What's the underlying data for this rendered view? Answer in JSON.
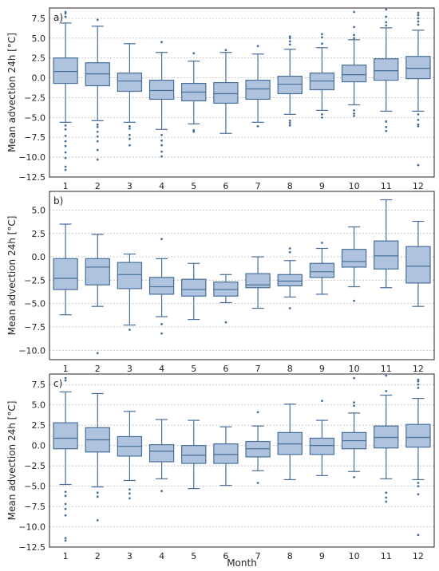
{
  "chart_data": [
    {
      "type": "box",
      "panel_label": "a)",
      "ylabel": "Mean advection 24h [°C]",
      "ylim": [
        -12.5,
        8.8
      ],
      "yticks": [
        -12.5,
        -10.0,
        -7.5,
        -5.0,
        -2.5,
        0.0,
        2.5,
        5.0,
        7.5
      ],
      "ytick_labels": [
        "−12.5",
        "−10.0",
        "−7.5",
        "−5.0",
        "−2.5",
        "0.0",
        "2.5",
        "5.0",
        "7.5"
      ],
      "grid": "y-dotted",
      "categories": [
        "1",
        "2",
        "3",
        "4",
        "5",
        "6",
        "7",
        "8",
        "9",
        "10",
        "11",
        "12"
      ],
      "boxes": [
        {
          "q1": -0.7,
          "median": 0.8,
          "q3": 2.5,
          "whisker_low": -5.6,
          "whisker_high": 6.9,
          "outliers": [
            -6.0,
            -6.5,
            -7.3,
            -8.0,
            -8.6,
            -9.4,
            -10.1,
            -11.2,
            -11.6,
            7.7,
            8.1,
            8.3
          ]
        },
        {
          "q1": -1.0,
          "median": 0.5,
          "q3": 1.9,
          "whisker_low": -5.4,
          "whisker_high": 6.5,
          "outliers": [
            -5.9,
            -6.2,
            -6.8,
            -7.4,
            -8.0,
            -9.1,
            -10.3,
            7.3
          ]
        },
        {
          "q1": -1.7,
          "median": -0.4,
          "q3": 0.6,
          "whisker_low": -5.6,
          "whisker_high": 4.3,
          "outliers": [
            -6.1,
            -6.4,
            -7.2,
            -7.7,
            -8.5
          ]
        },
        {
          "q1": -2.7,
          "median": -1.6,
          "q3": -0.3,
          "whisker_low": -6.5,
          "whisker_high": 3.2,
          "outliers": [
            -7.2,
            -7.9,
            -8.5,
            -9.3,
            -9.9,
            4.5
          ]
        },
        {
          "q1": -2.9,
          "median": -1.8,
          "q3": -0.7,
          "whisker_low": -5.8,
          "whisker_high": 2.1,
          "outliers": [
            -6.6,
            -6.8,
            3.1
          ]
        },
        {
          "q1": -3.2,
          "median": -2.0,
          "q3": -0.6,
          "whisker_low": -7.0,
          "whisker_high": 3.2,
          "outliers": [
            3.5
          ]
        },
        {
          "q1": -2.7,
          "median": -1.4,
          "q3": -0.3,
          "whisker_low": -5.6,
          "whisker_high": 3.0,
          "outliers": [
            -6.1,
            4.0
          ]
        },
        {
          "q1": -2.0,
          "median": -0.8,
          "q3": 0.2,
          "whisker_low": -4.6,
          "whisker_high": 3.6,
          "outliers": [
            -5.4,
            -5.7,
            -6.0,
            4.2,
            4.6,
            5.0,
            5.2
          ]
        },
        {
          "q1": -1.5,
          "median": -0.4,
          "q3": 0.6,
          "whisker_low": -4.1,
          "whisker_high": 3.8,
          "outliers": [
            -4.6,
            -5.0,
            4.3,
            5.1,
            5.5
          ]
        },
        {
          "q1": -0.5,
          "median": 0.4,
          "q3": 1.6,
          "whisker_low": -3.4,
          "whisker_high": 4.8,
          "outliers": [
            -4.1,
            -4.5,
            -4.8,
            5.0,
            5.4,
            6.4,
            8.3
          ]
        },
        {
          "q1": -0.3,
          "median": 0.9,
          "q3": 2.4,
          "whisker_low": -4.2,
          "whisker_high": 6.3,
          "outliers": [
            -5.5,
            -6.2,
            -6.7,
            6.6,
            7.0,
            7.7,
            8.6
          ]
        },
        {
          "q1": -0.1,
          "median": 1.2,
          "q3": 2.7,
          "whisker_low": -4.2,
          "whisker_high": 6.0,
          "outliers": [
            -4.6,
            -5.3,
            -5.9,
            -6.1,
            -11.0,
            6.7,
            7.1,
            7.5,
            7.9,
            8.2
          ]
        }
      ]
    },
    {
      "type": "box",
      "panel_label": "b)",
      "ylabel": "Mean advection 24h [°C]",
      "ylim": [
        -11.0,
        7.0
      ],
      "yticks": [
        -10.0,
        -7.5,
        -5.0,
        -2.5,
        0.0,
        2.5,
        5.0
      ],
      "ytick_labels": [
        "−10.0",
        "−7.5",
        "−5.0",
        "−2.5",
        "0.0",
        "2.5",
        "5.0"
      ],
      "grid": "y-dotted",
      "categories": [
        "1",
        "2",
        "3",
        "4",
        "5",
        "6",
        "7",
        "8",
        "9",
        "10",
        "11",
        "12"
      ],
      "boxes": [
        {
          "q1": -3.5,
          "median": -2.3,
          "q3": -0.2,
          "whisker_low": -6.2,
          "whisker_high": 3.5,
          "outliers": []
        },
        {
          "q1": -3.0,
          "median": -1.1,
          "q3": -0.2,
          "whisker_low": -5.3,
          "whisker_high": 2.4,
          "outliers": [
            -10.3
          ]
        },
        {
          "q1": -3.4,
          "median": -1.9,
          "q3": -0.6,
          "whisker_low": -7.3,
          "whisker_high": 0.3,
          "outliers": [
            -7.8
          ]
        },
        {
          "q1": -4.0,
          "median": -3.2,
          "q3": -2.2,
          "whisker_low": -6.4,
          "whisker_high": -0.2,
          "outliers": [
            -7.2,
            -8.2,
            1.9
          ]
        },
        {
          "q1": -4.2,
          "median": -3.5,
          "q3": -2.4,
          "whisker_low": -6.7,
          "whisker_high": -0.7,
          "outliers": []
        },
        {
          "q1": -4.2,
          "median": -3.5,
          "q3": -2.7,
          "whisker_low": -4.9,
          "whisker_high": -1.9,
          "outliers": [
            -7.0
          ]
        },
        {
          "q1": -3.3,
          "median": -3.0,
          "q3": -1.8,
          "whisker_low": -5.5,
          "whisker_high": 0.0,
          "outliers": []
        },
        {
          "q1": -3.1,
          "median": -2.6,
          "q3": -1.9,
          "whisker_low": -4.3,
          "whisker_high": -0.4,
          "outliers": [
            -5.5,
            0.5,
            0.9
          ]
        },
        {
          "q1": -2.2,
          "median": -1.6,
          "q3": -0.7,
          "whisker_low": -4.0,
          "whisker_high": 0.9,
          "outliers": [
            1.5
          ]
        },
        {
          "q1": -1.1,
          "median": -0.5,
          "q3": 0.8,
          "whisker_low": -3.2,
          "whisker_high": 3.2,
          "outliers": [
            -4.7
          ]
        },
        {
          "q1": -1.3,
          "median": 0.1,
          "q3": 1.7,
          "whisker_low": -3.3,
          "whisker_high": 6.1,
          "outliers": []
        },
        {
          "q1": -2.8,
          "median": -1.0,
          "q3": 1.1,
          "whisker_low": -5.3,
          "whisker_high": 3.8,
          "outliers": []
        }
      ]
    },
    {
      "type": "box",
      "panel_label": "c)",
      "ylabel": "Mean advection 24h [°C]",
      "ylim": [
        -12.5,
        8.8
      ],
      "yticks": [
        -12.5,
        -10.0,
        -7.5,
        -5.0,
        -2.5,
        0.0,
        2.5,
        5.0,
        7.5
      ],
      "ytick_labels": [
        "−12.5",
        "−10.0",
        "−7.5",
        "−5.0",
        "−2.5",
        "0.0",
        "2.5",
        "5.0",
        "7.5"
      ],
      "grid": "y-dotted",
      "xlabel": "Month",
      "categories": [
        "1",
        "2",
        "3",
        "4",
        "5",
        "6",
        "7",
        "8",
        "9",
        "10",
        "11",
        "12"
      ],
      "boxes": [
        {
          "q1": -0.4,
          "median": 0.9,
          "q3": 2.8,
          "whisker_low": -4.8,
          "whisker_high": 6.6,
          "outliers": [
            -5.7,
            -6.2,
            -7.2,
            -7.8,
            -8.6,
            -11.4,
            -11.7,
            8.0,
            8.3
          ]
        },
        {
          "q1": -0.8,
          "median": 0.7,
          "q3": 2.2,
          "whisker_low": -5.1,
          "whisker_high": 6.4,
          "outliers": [
            -5.8,
            -6.3,
            -9.2
          ]
        },
        {
          "q1": -1.3,
          "median": -0.1,
          "q3": 1.1,
          "whisker_low": -4.3,
          "whisker_high": 4.2,
          "outliers": [
            -5.4,
            -5.9,
            -6.5
          ]
        },
        {
          "q1": -2.0,
          "median": -0.7,
          "q3": 0.1,
          "whisker_low": -4.1,
          "whisker_high": 3.2,
          "outliers": [
            -5.6
          ]
        },
        {
          "q1": -2.2,
          "median": -1.2,
          "q3": 0.0,
          "whisker_low": -5.3,
          "whisker_high": 3.1,
          "outliers": []
        },
        {
          "q1": -2.2,
          "median": -1.1,
          "q3": 0.2,
          "whisker_low": -4.9,
          "whisker_high": 2.3,
          "outliers": []
        },
        {
          "q1": -1.4,
          "median": -0.4,
          "q3": 0.5,
          "whisker_low": -3.1,
          "whisker_high": 2.4,
          "outliers": [
            -4.6,
            4.1
          ]
        },
        {
          "q1": -1.1,
          "median": 0.2,
          "q3": 1.6,
          "whisker_low": -4.2,
          "whisker_high": 5.1,
          "outliers": []
        },
        {
          "q1": -1.1,
          "median": 0.0,
          "q3": 0.9,
          "whisker_low": -3.7,
          "whisker_high": 3.1,
          "outliers": [
            5.5
          ]
        },
        {
          "q1": -0.4,
          "median": 0.6,
          "q3": 1.6,
          "whisker_low": -3.2,
          "whisker_high": 4.0,
          "outliers": [
            -3.9,
            4.9,
            5.3,
            8.3
          ]
        },
        {
          "q1": -0.3,
          "median": 1.0,
          "q3": 2.4,
          "whisker_low": -4.1,
          "whisker_high": 6.2,
          "outliers": [
            -5.8,
            -6.4,
            -6.9,
            6.7,
            8.6
          ]
        },
        {
          "q1": -0.2,
          "median": 1.0,
          "q3": 2.6,
          "whisker_low": -4.2,
          "whisker_high": 5.8,
          "outliers": [
            -4.6,
            -5.0,
            -6.0,
            -11.0,
            7.1,
            7.5,
            7.9,
            8.1
          ]
        }
      ]
    }
  ],
  "colors": {
    "box_fill": "#afc3df",
    "box_edge": "#466f99",
    "grid": "#b0b0b0",
    "axes_edge": "#262626"
  }
}
